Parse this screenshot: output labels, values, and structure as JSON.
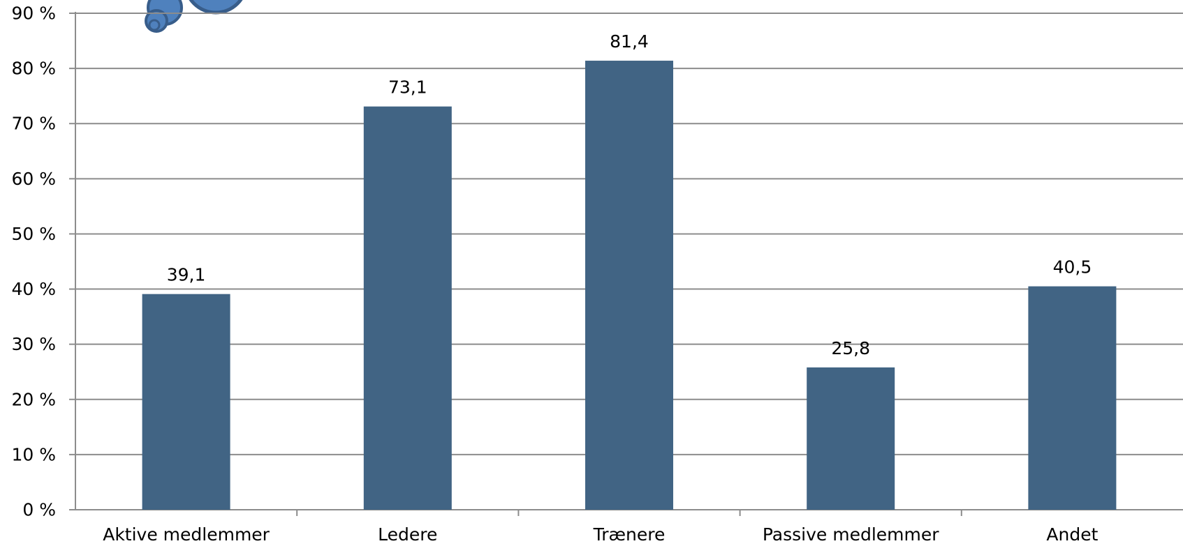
{
  "chart_data": {
    "type": "bar",
    "categories": [
      "Aktive medlemmer",
      "Ledere",
      "Trænere",
      "Passive medlemmer",
      "Andet"
    ],
    "values": [
      39.1,
      73.1,
      81.4,
      25.8,
      40.5
    ],
    "value_labels": [
      "39,1",
      "73,1",
      "81,4",
      "25,8",
      "40,5"
    ],
    "y_ticks": [
      0,
      10,
      20,
      30,
      40,
      50,
      60,
      70,
      80,
      90
    ],
    "y_tick_labels": [
      "0 %",
      "10 %",
      "20 %",
      "30 %",
      "40 %",
      "50 %",
      "60 %",
      "70 %",
      "80 %",
      "90 %"
    ],
    "ylim": [
      0,
      90
    ],
    "grid": true,
    "legend": "none",
    "title": "",
    "xlabel": "",
    "ylabel": "",
    "colors": {
      "bar": "#416484",
      "grid": "#8c8c8c",
      "axis": "#8c8c8c",
      "decoration_fill": "#4f81bd",
      "decoration_stroke": "#385d8a"
    }
  }
}
